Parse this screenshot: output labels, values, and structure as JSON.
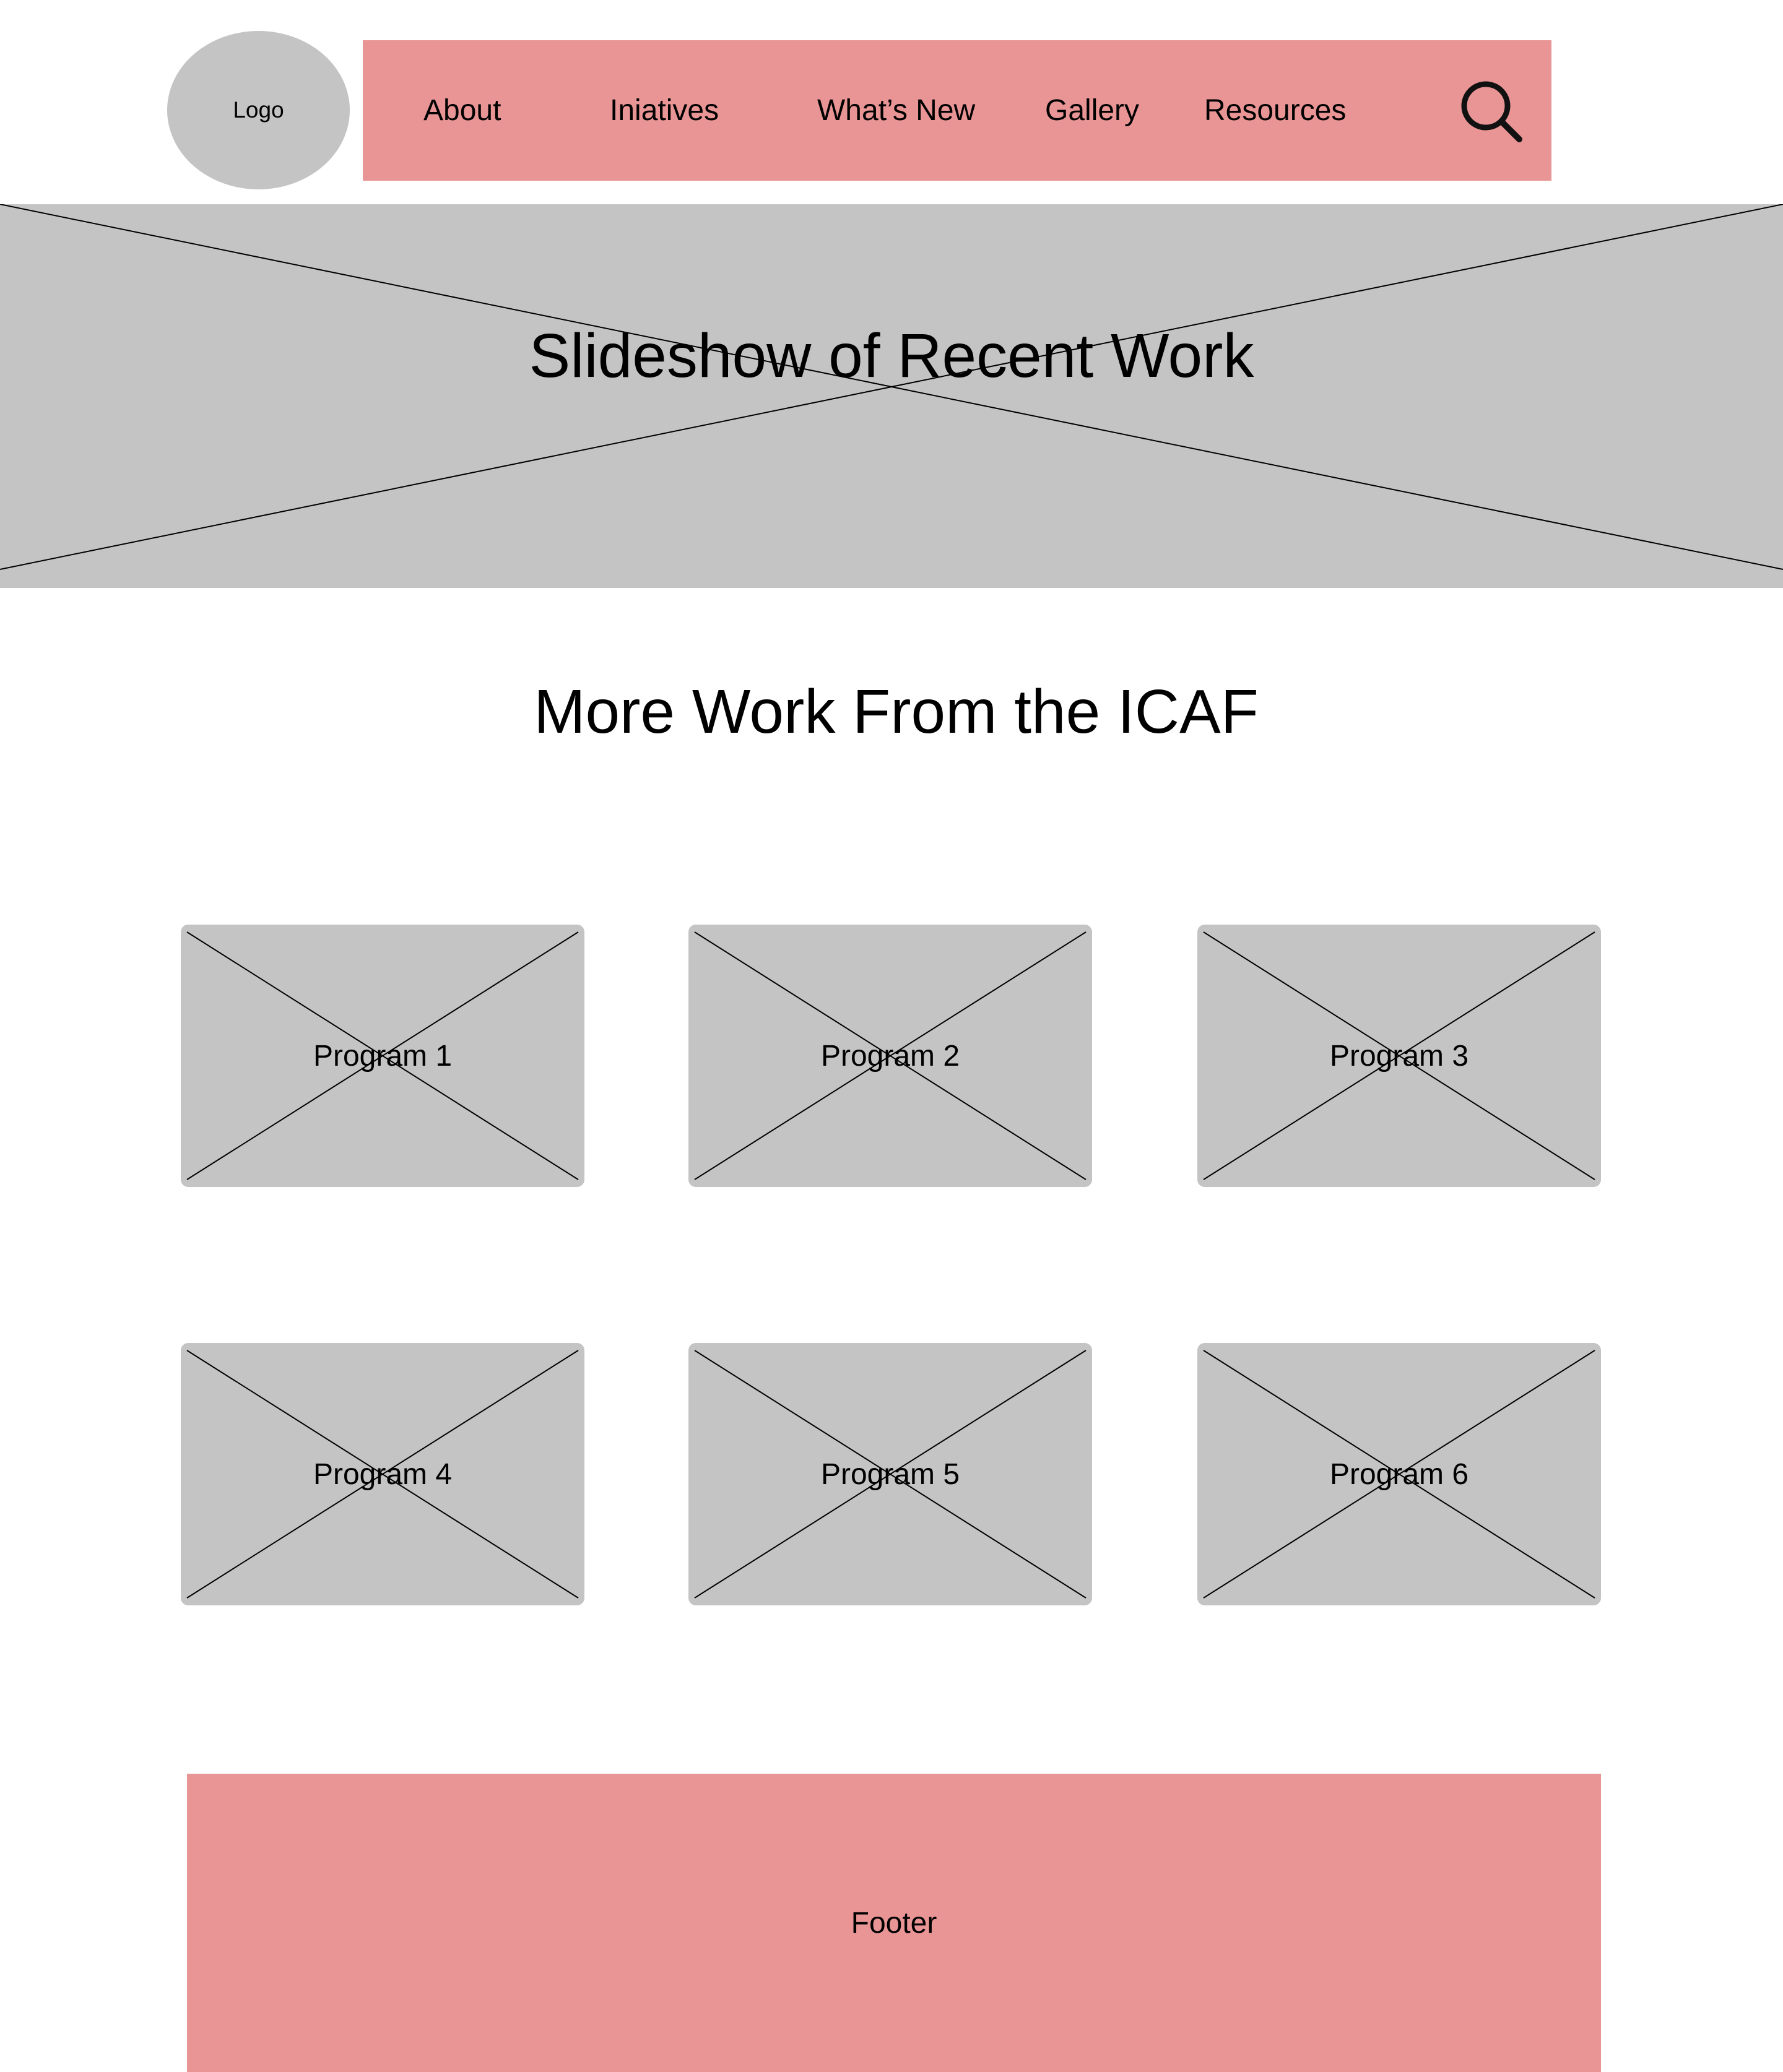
{
  "colors": {
    "nav_background": "#e99595",
    "placeholder_gray": "#c4c4c4",
    "footer_background": "#e99595"
  },
  "header": {
    "logo_label": "Logo",
    "nav": {
      "about": "About",
      "initiatives": "Iniatives",
      "whats_new": "What’s New",
      "gallery": "Gallery",
      "resources": "Resources"
    },
    "search_icon": "search-icon"
  },
  "hero": {
    "title": "Slideshow of Recent Work"
  },
  "section": {
    "title": "More Work From the ICAF"
  },
  "programs": [
    {
      "label": "Program 1"
    },
    {
      "label": "Program 2"
    },
    {
      "label": "Program 3"
    },
    {
      "label": "Program 4"
    },
    {
      "label": "Program 5"
    },
    {
      "label": "Program 6"
    }
  ],
  "footer": {
    "label": "Footer"
  }
}
